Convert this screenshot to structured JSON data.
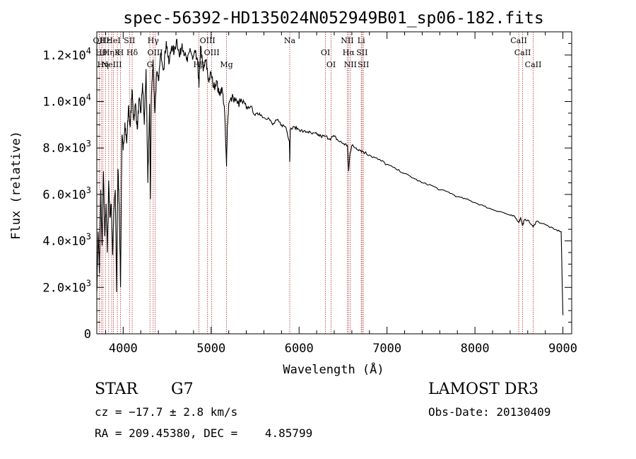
{
  "chart_data": {
    "type": "line",
    "title": "spec-56392-HD135024N052949B01_sp06-182.fits",
    "xlabel": "Wavelength (Å)",
    "ylabel": "Flux (relative)",
    "xlim": [
      3700,
      9100
    ],
    "ylim": [
      0,
      13000
    ],
    "xticks": [
      4000,
      5000,
      6000,
      7000,
      8000,
      9000
    ],
    "xtick_labels": [
      "4000",
      "5000",
      "6000",
      "7000",
      "8000",
      "9000"
    ],
    "yticks": [
      {
        "value": 0,
        "mantissa": "0",
        "exp": ""
      },
      {
        "value": 2000,
        "mantissa": "2.0×10",
        "exp": "3"
      },
      {
        "value": 4000,
        "mantissa": "4.0×10",
        "exp": "3"
      },
      {
        "value": 6000,
        "mantissa": "6.0×10",
        "exp": "3"
      },
      {
        "value": 8000,
        "mantissa": "8.0×10",
        "exp": "3"
      },
      {
        "value": 10000,
        "mantissa": "1.0×10",
        "exp": "4"
      },
      {
        "value": 12000,
        "mantissa": "1.2×10",
        "exp": "4"
      }
    ],
    "series": [
      {
        "x": [
          3700,
          3715,
          3730,
          3745,
          3760,
          3775,
          3790,
          3805,
          3820,
          3835,
          3850,
          3865,
          3880,
          3895,
          3910,
          3925,
          3940,
          3955,
          3970,
          3985,
          4000,
          4020,
          4040,
          4060,
          4080,
          4100,
          4120,
          4140,
          4160,
          4180,
          4200,
          4220,
          4240,
          4260,
          4280,
          4300,
          4310,
          4320,
          4340,
          4360,
          4380,
          4400,
          4430,
          4460,
          4490,
          4520,
          4550,
          4580,
          4610,
          4640,
          4670,
          4700,
          4730,
          4760,
          4790,
          4820,
          4850,
          4861,
          4880,
          4910,
          4940,
          4970,
          5000,
          5030,
          5060,
          5090,
          5120,
          5150,
          5175,
          5183,
          5200,
          5250,
          5300,
          5350,
          5400,
          5450,
          5500,
          5550,
          5600,
          5650,
          5700,
          5750,
          5800,
          5850,
          5890,
          5894,
          5900,
          5950,
          6000,
          6050,
          6100,
          6150,
          6200,
          6250,
          6300,
          6350,
          6400,
          6450,
          6500,
          6550,
          6563,
          6580,
          6600,
          6650,
          6700,
          6750,
          6800,
          6900,
          7000,
          7100,
          7200,
          7300,
          7400,
          7500,
          7600,
          7700,
          7800,
          7900,
          8000,
          8100,
          8200,
          8300,
          8400,
          8450,
          8498,
          8520,
          8542,
          8560,
          8600,
          8662,
          8700,
          8800,
          8900,
          8980,
          9000
        ],
        "y": [
          1800,
          4400,
          2600,
          6200,
          3800,
          7000,
          4200,
          5600,
          3500,
          6600,
          5000,
          5600,
          3400,
          5400,
          6200,
          1800,
          7100,
          5600,
          2000,
          8500,
          7900,
          9100,
          8200,
          9800,
          8900,
          10500,
          9200,
          9900,
          8800,
          10100,
          9500,
          10800,
          9000,
          11400,
          6500,
          9900,
          5800,
          10200,
          11800,
          9500,
          11200,
          10900,
          12100,
          11400,
          12600,
          11600,
          12400,
          12100,
          12700,
          11900,
          12500,
          12000,
          11700,
          12300,
          11800,
          12100,
          11500,
          10600,
          12400,
          11300,
          11800,
          10900,
          11200,
          10600,
          10900,
          10300,
          10600,
          9800,
          7200,
          8800,
          9900,
          10200,
          9900,
          10000,
          9700,
          9800,
          9400,
          9500,
          9300,
          9300,
          9000,
          9200,
          9000,
          8900,
          8300,
          7400,
          8800,
          8900,
          8800,
          8700,
          8700,
          8600,
          8600,
          8500,
          8500,
          8400,
          8500,
          8300,
          8200,
          8100,
          7000,
          7800,
          8100,
          8000,
          7900,
          7800,
          7700,
          7500,
          7300,
          7100,
          6900,
          6700,
          6500,
          6400,
          6200,
          6100,
          5900,
          5800,
          5650,
          5500,
          5350,
          5250,
          5100,
          5050,
          4800,
          5000,
          4650,
          4900,
          4900,
          4600,
          4850,
          4700,
          4500,
          4400,
          800
        ]
      }
    ],
    "lines": [
      {
        "wl": 3727,
        "labels": [
          "OII"
        ]
      },
      {
        "wl": 3750,
        "labels": [
          "Hθ"
        ]
      },
      {
        "wl": 3770,
        "labels": [
          "Hη"
        ]
      },
      {
        "wl": 3798,
        "labels": [
          "Hε"
        ]
      },
      {
        "wl": 3835,
        "labels": [
          "Hη"
        ]
      },
      {
        "wl": 3869,
        "labels": [
          "NeIII"
        ]
      },
      {
        "wl": 3889,
        "labels": [
          "HeI"
        ]
      },
      {
        "wl": 3934,
        "labels": [
          "K"
        ]
      },
      {
        "wl": 3969,
        "labels": [
          "H"
        ]
      },
      {
        "wl": 4072,
        "labels": [
          "SII"
        ]
      },
      {
        "wl": 4102,
        "labels": [
          "Hδ"
        ]
      },
      {
        "wl": 4304,
        "labels": [
          "G"
        ]
      },
      {
        "wl": 4341,
        "labels": [
          "Hγ"
        ]
      },
      {
        "wl": 4363,
        "labels": [
          "OIII"
        ]
      },
      {
        "wl": 4861,
        "labels": [
          "Hβ"
        ]
      },
      {
        "wl": 4959,
        "labels": [
          "OIII"
        ]
      },
      {
        "wl": 5007,
        "labels": [
          "OIII"
        ]
      },
      {
        "wl": 5175,
        "labels": [
          "Mg"
        ]
      },
      {
        "wl": 5894,
        "labels": [
          "Na"
        ]
      },
      {
        "wl": 6300,
        "labels": [
          "OI"
        ]
      },
      {
        "wl": 6364,
        "labels": [
          "OI"
        ]
      },
      {
        "wl": 6548,
        "labels": [
          "NII"
        ]
      },
      {
        "wl": 6563,
        "labels": [
          "Hα"
        ]
      },
      {
        "wl": 6583,
        "labels": [
          "NII"
        ]
      },
      {
        "wl": 6707,
        "labels": [
          "Li"
        ]
      },
      {
        "wl": 6716,
        "labels": [
          "SII"
        ]
      },
      {
        "wl": 6731,
        "labels": [
          "SII"
        ]
      },
      {
        "wl": 8498,
        "labels": [
          "CaII"
        ]
      },
      {
        "wl": 8542,
        "labels": [
          "CaII"
        ]
      },
      {
        "wl": 8662,
        "labels": [
          "CaII"
        ]
      }
    ],
    "grid": false,
    "legend": "none"
  },
  "info": {
    "class_label": "STAR",
    "subclass": "G7",
    "survey": "LAMOST DR3",
    "cz": "cz = −17.7 ± 2.8 km/s",
    "obs_date": "Obs-Date: 20130409",
    "coords": "RA = 209.45380, DEC =    4.85799"
  },
  "colors": {
    "spectrum": "#000000",
    "line_marker": "#b03030",
    "axes": "#000000"
  }
}
